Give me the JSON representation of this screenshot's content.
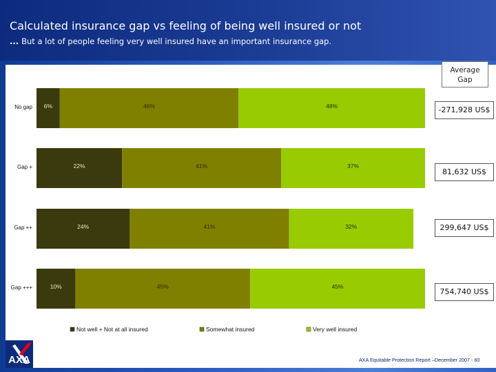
{
  "header": {
    "title": "Calculated insurance gap vs feeling of being well insured or not",
    "subtitle_dots": "...",
    "subtitle": "But a lot of people feeling very well insured have an important insurance gap."
  },
  "average_gap": {
    "header": "Average Gap",
    "values": [
      "-271,928 US$",
      "81,632 US$",
      "299,647 US$",
      "754,740 US$"
    ]
  },
  "chart_data": {
    "type": "bar",
    "orientation": "horizontal",
    "stacked": true,
    "percent": true,
    "categories": [
      "No gap",
      "Gap +",
      "Gap ++",
      "Gap +++"
    ],
    "series": [
      {
        "name": "Not well + Not at all insured",
        "values": [
          6,
          22,
          24,
          10
        ],
        "labels": [
          "6%",
          "22%",
          "24%",
          "10%"
        ],
        "color": "#3a3a0e"
      },
      {
        "name": "Somewhat insured",
        "values": [
          46,
          41,
          41,
          45
        ],
        "labels": [
          "46%",
          "41%",
          "41%",
          "45%"
        ],
        "color": "#808000"
      },
      {
        "name": "Very well insured",
        "values": [
          48,
          37,
          32,
          45
        ],
        "labels": [
          "48%",
          "37%",
          "32%",
          "45%"
        ],
        "color": "#99cc00"
      }
    ],
    "xlim": [
      0,
      100
    ],
    "legend_position": "bottom",
    "grid": false
  },
  "footer": {
    "text": "AXA Equitable Protection Report –December 2007 - 60"
  },
  "logo": {
    "text": "AXA"
  },
  "colors": {
    "header_bg": "#0d2b7e",
    "band": "#2a5bc2"
  }
}
